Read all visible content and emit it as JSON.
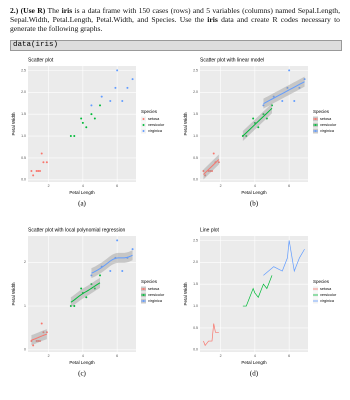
{
  "question": {
    "label": "2.) (Use R)",
    "text_1": " The ",
    "bold_1": "iris",
    "text_2": " is a data frame with 150 cases (rows) and 5 variables (columns) named Sepal.Length, Sepal.Width, Petal.Length, Petal.Width, and Species.  Use the ",
    "bold_2": "iris",
    "text_3": " data and create R codes necessary to generate the following graphs.",
    "code": "data(iris)"
  },
  "chart_data": [
    {
      "type": "scatter",
      "title": "Scatter plot",
      "caption": "(a)",
      "xlabel": "Petal Length",
      "ylabel": "Petal Width",
      "legend_title": "Species",
      "legend": "right",
      "grid": true,
      "xlim": [
        0.8,
        7.1
      ],
      "xticks": [
        2,
        4,
        6
      ],
      "ylim": [
        -0.05,
        2.6
      ],
      "yticks": [
        {
          "value": 0,
          "label": "0.0"
        },
        0.5,
        {
          "value": 1,
          "label": "1.0"
        },
        1.5,
        {
          "value": 2,
          "label": "2.0"
        },
        2.5
      ],
      "series": [
        {
          "name": "setosa",
          "color": "#F8766D",
          "x": [
            1.4,
            1.3,
            1.5,
            1.7,
            1.1,
            1.9,
            1.6,
            1.0
          ],
          "values": [
            0.2,
            0.2,
            0.2,
            0.4,
            0.1,
            0.4,
            0.6,
            0.2
          ]
        },
        {
          "name": "versicolor",
          "color": "#00BA38",
          "x": [
            4.7,
            4.5,
            4.0,
            3.3,
            3.9,
            4.2,
            5.0,
            3.5
          ],
          "values": [
            1.4,
            1.5,
            1.3,
            1.0,
            1.4,
            1.2,
            1.7,
            1.0
          ]
        },
        {
          "name": "virginica",
          "color": "#619CFF",
          "x": [
            6.0,
            5.1,
            5.9,
            5.6,
            6.6,
            4.5,
            6.3,
            6.9
          ],
          "values": [
            2.5,
            1.9,
            2.1,
            1.8,
            2.1,
            1.7,
            1.8,
            2.3
          ]
        }
      ]
    },
    {
      "type": "scatter",
      "smooth": "lm",
      "title": "Scatter plot with linear model",
      "caption": "(b)",
      "xlabel": "Petal Length",
      "ylabel": "Petal Width",
      "legend_title": "Species",
      "legend": "right",
      "grid": true,
      "xlim": [
        0.8,
        7.1
      ],
      "xticks": [
        2,
        4,
        6
      ],
      "ylim": [
        -0.05,
        2.6
      ],
      "yticks": [
        {
          "value": 0,
          "label": "0.0"
        },
        0.5,
        {
          "value": 1,
          "label": "1.0"
        },
        1.5,
        {
          "value": 2,
          "label": "2.0"
        },
        2.5
      ],
      "series": [
        {
          "name": "setosa",
          "color": "#F8766D",
          "x": [
            1.4,
            1.3,
            1.5,
            1.7,
            1.1,
            1.9,
            1.6,
            1.0
          ],
          "values": [
            0.2,
            0.2,
            0.2,
            0.4,
            0.1,
            0.4,
            0.6,
            0.2
          ]
        },
        {
          "name": "versicolor",
          "color": "#00BA38",
          "x": [
            4.7,
            4.5,
            4.0,
            3.3,
            3.9,
            4.2,
            5.0,
            3.5
          ],
          "values": [
            1.4,
            1.5,
            1.3,
            1.0,
            1.4,
            1.2,
            1.7,
            1.0
          ]
        },
        {
          "name": "virginica",
          "color": "#619CFF",
          "x": [
            6.0,
            5.1,
            5.9,
            5.6,
            6.6,
            4.5,
            6.3,
            6.9
          ],
          "values": [
            2.5,
            1.9,
            2.1,
            1.8,
            2.1,
            1.7,
            1.8,
            2.3
          ]
        }
      ]
    },
    {
      "type": "scatter",
      "smooth": "loess",
      "title": "Scatter plot with local polynomial regression",
      "caption": "(c)",
      "xlabel": "Petal Length",
      "ylabel": "Petal Width",
      "legend_title": "Species",
      "legend": "right",
      "grid": true,
      "xlim": [
        0.8,
        7.1
      ],
      "xticks": [
        2,
        4,
        6
      ],
      "ylim": [
        -0.05,
        2.6
      ],
      "yticks": [
        0,
        1,
        2
      ],
      "series": [
        {
          "name": "setosa",
          "color": "#F8766D",
          "x": [
            1.4,
            1.3,
            1.5,
            1.7,
            1.1,
            1.9,
            1.6,
            1.0
          ],
          "values": [
            0.2,
            0.2,
            0.2,
            0.4,
            0.1,
            0.4,
            0.6,
            0.2
          ]
        },
        {
          "name": "versicolor",
          "color": "#00BA38",
          "x": [
            4.7,
            4.5,
            4.0,
            3.3,
            3.9,
            4.2,
            5.0,
            3.5
          ],
          "values": [
            1.4,
            1.5,
            1.3,
            1.0,
            1.4,
            1.2,
            1.7,
            1.0
          ]
        },
        {
          "name": "virginica",
          "color": "#619CFF",
          "x": [
            6.0,
            5.1,
            5.9,
            5.6,
            6.6,
            4.5,
            6.3,
            6.9
          ],
          "values": [
            2.5,
            1.9,
            2.1,
            1.8,
            2.1,
            1.7,
            1.8,
            2.3
          ]
        }
      ]
    },
    {
      "type": "line",
      "title": "Line plot",
      "caption": "(d)",
      "xlabel": "Petal Length",
      "ylabel": "Petal Width",
      "legend_title": "Species",
      "legend": "right",
      "grid": true,
      "xlim": [
        0.8,
        7.1
      ],
      "xticks": [
        2,
        4,
        6
      ],
      "ylim": [
        -0.05,
        2.6
      ],
      "yticks": [
        {
          "value": 0,
          "label": "0.0"
        },
        0.5,
        {
          "value": 1,
          "label": "1.0"
        },
        1.5,
        {
          "value": 2,
          "label": "2.0"
        },
        2.5
      ],
      "series": [
        {
          "name": "setosa",
          "color": "#F8766D",
          "x": [
            1.0,
            1.1,
            1.3,
            1.4,
            1.5,
            1.6,
            1.7,
            1.9
          ],
          "values": [
            0.2,
            0.1,
            0.2,
            0.2,
            0.2,
            0.6,
            0.4,
            0.4
          ]
        },
        {
          "name": "versicolor",
          "color": "#00BA38",
          "x": [
            3.3,
            3.5,
            3.9,
            4.0,
            4.2,
            4.5,
            4.7,
            5.0
          ],
          "values": [
            1.0,
            1.0,
            1.4,
            1.3,
            1.2,
            1.5,
            1.4,
            1.7
          ]
        },
        {
          "name": "virginica",
          "color": "#619CFF",
          "x": [
            4.5,
            5.1,
            5.6,
            5.9,
            6.0,
            6.3,
            6.6,
            6.9
          ],
          "values": [
            1.7,
            1.9,
            1.8,
            2.1,
            2.5,
            1.8,
            2.1,
            2.3
          ]
        }
      ]
    }
  ]
}
